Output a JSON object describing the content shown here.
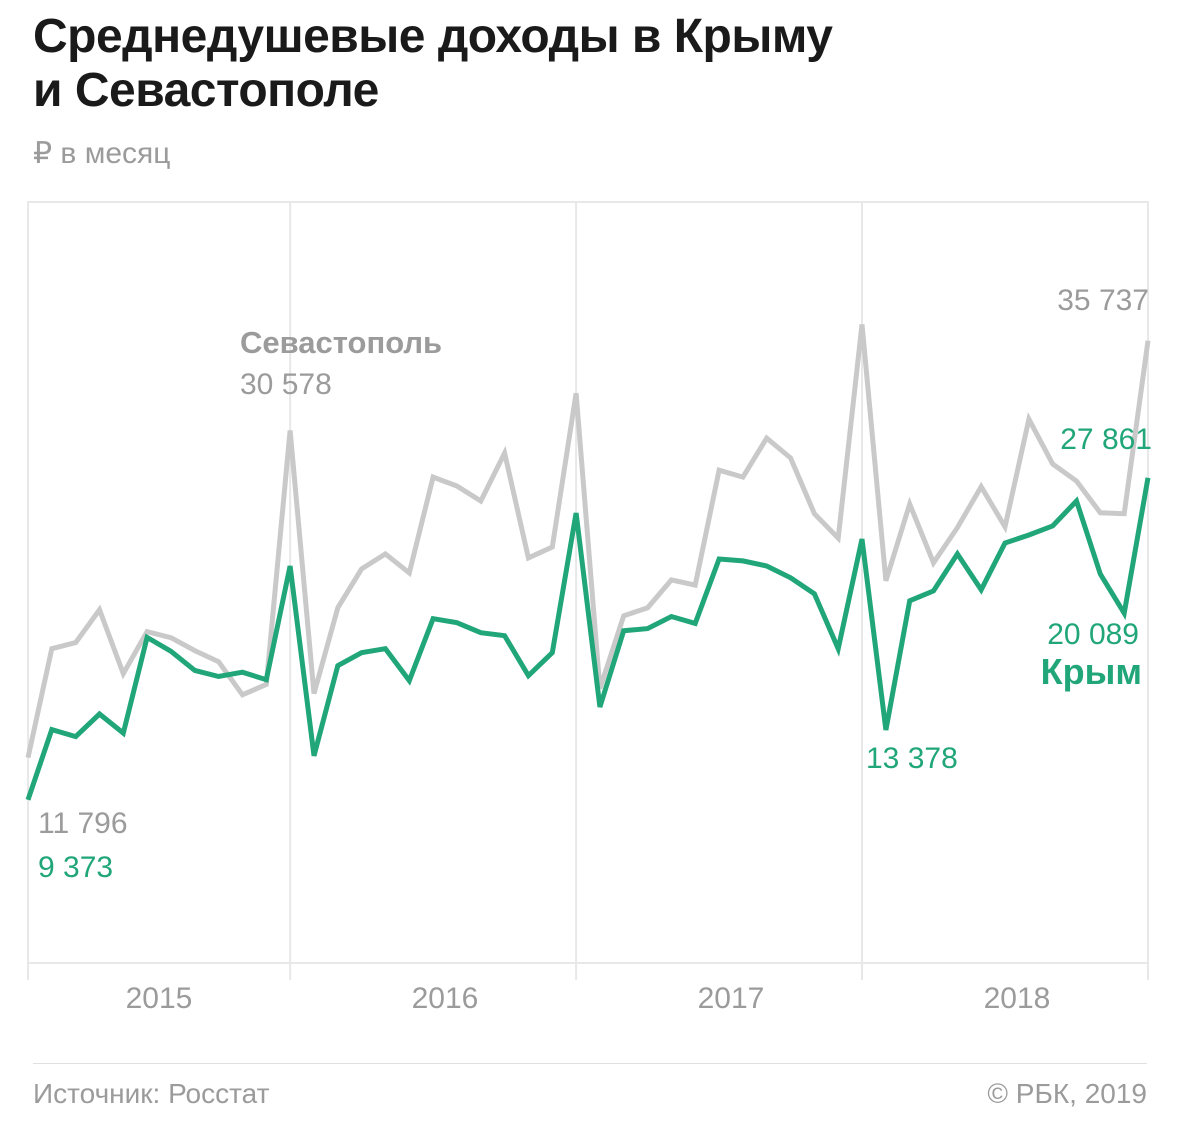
{
  "header": {
    "title_line1": "Среднедушевые доходы в Крыму",
    "title_line2": "и Севастополе",
    "subtitle": "₽ в месяц"
  },
  "chart_data": {
    "type": "line",
    "title": "Среднедушевые доходы в Крыму и Севастополе",
    "ylabel": "₽ в месяц",
    "x_interval": "monthly",
    "x_start": "2015-01",
    "x_end": "2018-12",
    "x_axis": {
      "tick_labels": [
        "2015",
        "2016",
        "2017",
        "2018"
      ]
    },
    "ylim": [
      0,
      43700
    ],
    "grid": "vertical lines at each December / year boundary, light gray frame, no horizontal gridlines",
    "colors": {
      "sevastopol": "#c9c9c9",
      "crimea": "#20a679",
      "grid": "#e8e8e8",
      "label_gray": "#9b9b9b"
    },
    "series": [
      {
        "name": "Севастополь",
        "color": "#c9c9c9",
        "values": [
          11796,
          18050,
          18400,
          20280,
          16620,
          19030,
          18680,
          17940,
          17300,
          15400,
          16000,
          30578,
          15470,
          20400,
          22630,
          23490,
          22400,
          27900,
          27390,
          26530,
          29280,
          23260,
          23890,
          32720,
          15760,
          19940,
          20400,
          22000,
          21700,
          28300,
          27900,
          30140,
          29000,
          25800,
          24400,
          36670,
          21950,
          26360,
          22980,
          25000,
          27350,
          25050,
          31230,
          28650,
          27680,
          25850,
          25800,
          35737
        ]
      },
      {
        "name": "Крым",
        "color": "#20a679",
        "values": [
          9373,
          13400,
          13000,
          14300,
          13200,
          18700,
          17900,
          16800,
          16450,
          16700,
          16270,
          22800,
          11900,
          17070,
          17820,
          18050,
          16215,
          19770,
          19540,
          18970,
          18795,
          16500,
          17820,
          25840,
          14700,
          19080,
          19200,
          19900,
          19500,
          23200,
          23090,
          22800,
          22120,
          21200,
          18050,
          24350,
          13378,
          20800,
          21370,
          23490,
          21430,
          24120,
          24580,
          25100,
          26530,
          22340,
          20089,
          27861
        ]
      }
    ],
    "annotations": {
      "sevastopol_name": "Севастополь",
      "sevastopol_dec2015": "30 578",
      "sevastopol_jan2015": "11 796",
      "sevastopol_dec2018": "35 737",
      "crimea_name": "Крым",
      "crimea_jan2015": "9 373",
      "crimea_jan2018": "13 378",
      "crimea_nov2018": "20 089",
      "crimea_dec2018": "27 861"
    }
  },
  "footer": {
    "source": "Источник: Росстат",
    "copyright": "© РБК, 2019"
  }
}
